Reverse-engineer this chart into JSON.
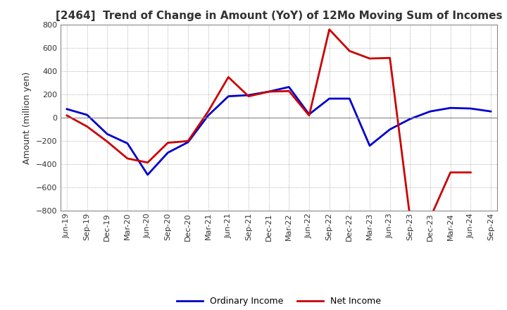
{
  "title": "[2464]  Trend of Change in Amount (YoY) of 12Mo Moving Sum of Incomes",
  "ylabel": "Amount (million yen)",
  "x_labels": [
    "Jun-19",
    "Sep-19",
    "Dec-19",
    "Mar-20",
    "Jun-20",
    "Sep-20",
    "Dec-20",
    "Mar-21",
    "Jun-21",
    "Sep-21",
    "Dec-21",
    "Mar-22",
    "Jun-22",
    "Sep-22",
    "Dec-22",
    "Mar-23",
    "Jun-23",
    "Sep-23",
    "Dec-23",
    "Mar-24",
    "Jun-24",
    "Sep-24"
  ],
  "ordinary_income": [
    75,
    25,
    -140,
    -220,
    -490,
    -300,
    -210,
    20,
    185,
    195,
    225,
    265,
    30,
    165,
    165,
    -240,
    -100,
    -10,
    55,
    85,
    80,
    55
  ],
  "net_income": [
    20,
    -75,
    -205,
    -350,
    -385,
    -215,
    -200,
    55,
    350,
    185,
    225,
    230,
    20,
    760,
    575,
    510,
    515,
    -860,
    -860,
    -470,
    -470,
    null
  ],
  "ordinary_color": "#0000cc",
  "net_color": "#cc0000",
  "ylim": [
    -800,
    800
  ],
  "yticks": [
    -800,
    -600,
    -400,
    -200,
    0,
    200,
    400,
    600,
    800
  ],
  "legend_labels": [
    "Ordinary Income",
    "Net Income"
  ],
  "bg_color": "#ffffff",
  "plot_bg_color": "#ffffff",
  "grid_color": "#999999",
  "line_width": 2.0,
  "title_fontsize": 11,
  "ylabel_fontsize": 9,
  "tick_fontsize": 8,
  "legend_fontsize": 9
}
